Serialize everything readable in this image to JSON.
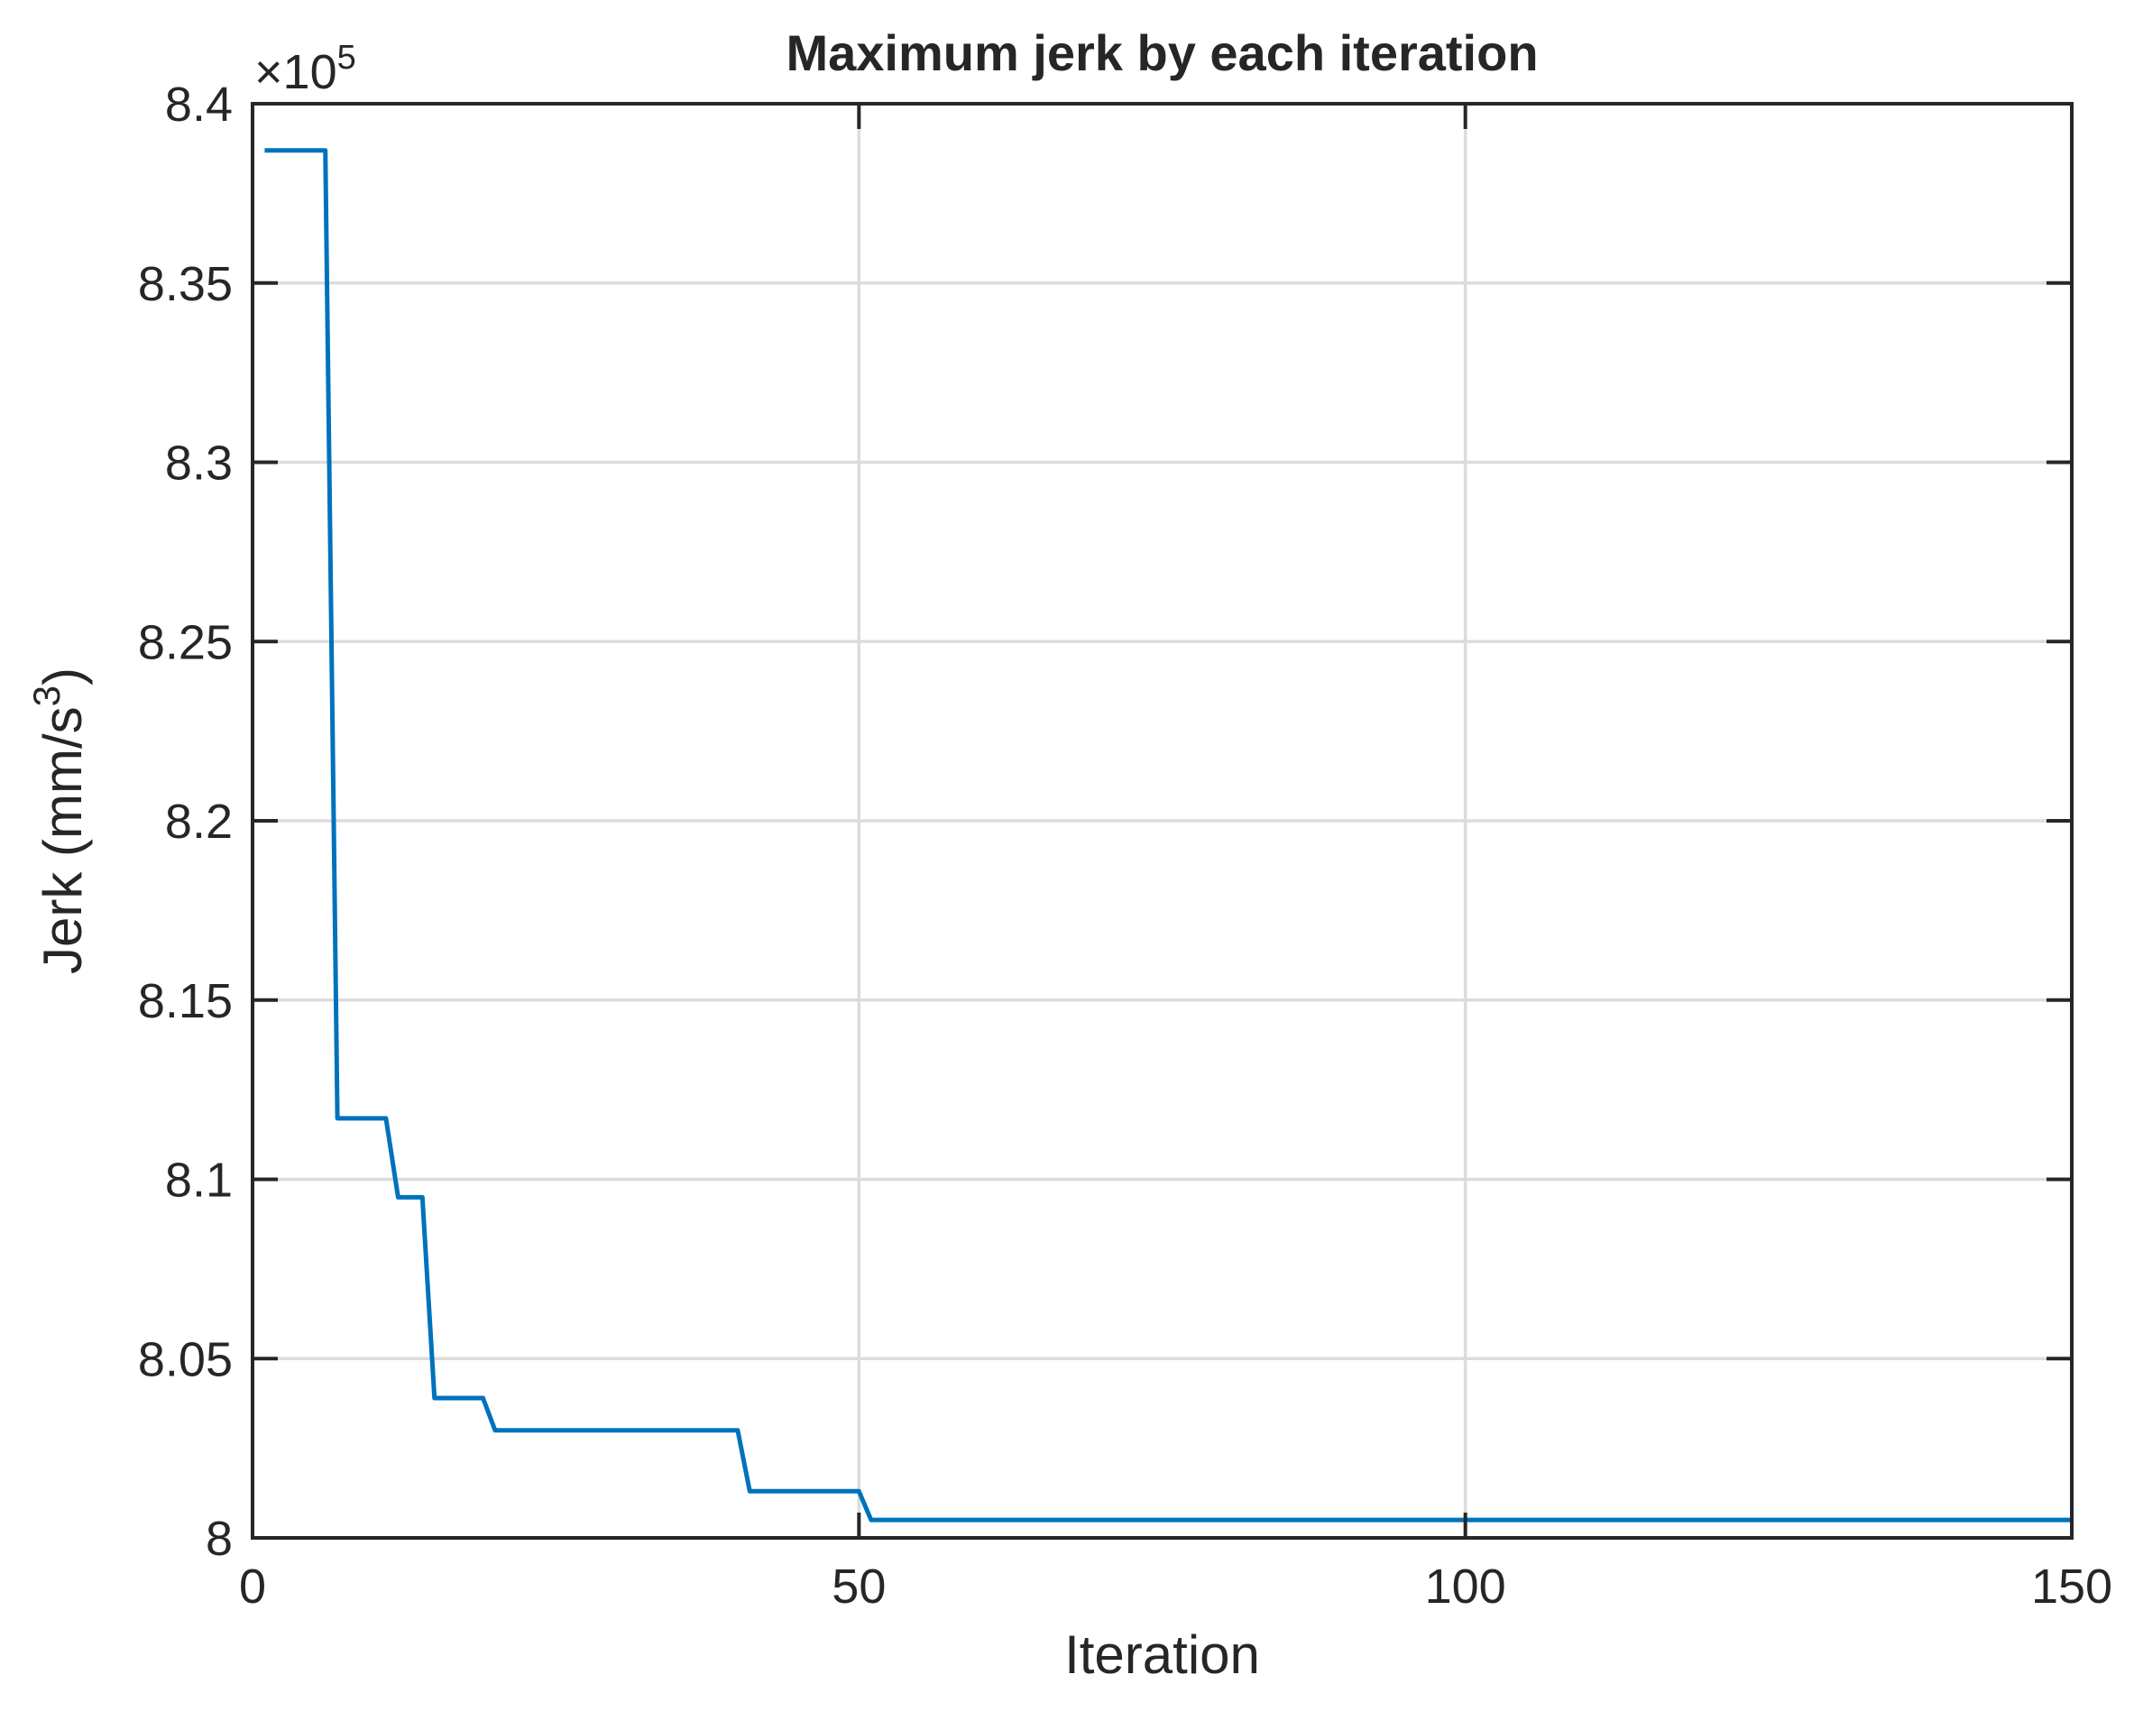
{
  "chart_data": {
    "type": "line",
    "title": "Maximum jerk by each iteration",
    "xlabel": "Iteration",
    "ylabel": {
      "main": "Jerk (mm/s",
      "superscript": "3",
      "close": ")"
    },
    "exponent_label": {
      "base": "×10",
      "power": "5"
    },
    "xlim": [
      0,
      150
    ],
    "ylim": [
      8.0,
      8.4
    ],
    "x_ticks": [
      0,
      50,
      100,
      150
    ],
    "x_tick_labels": [
      "0",
      "50",
      "100",
      "150"
    ],
    "y_ticks": [
      8.0,
      8.05,
      8.1,
      8.15,
      8.2,
      8.25,
      8.3,
      8.35,
      8.4
    ],
    "y_tick_labels": [
      "8",
      "8.05",
      "8.1",
      "8.15",
      "8.2",
      "8.25",
      "8.3",
      "8.35",
      "8.4"
    ],
    "grid": true,
    "line_color": "#0072BD",
    "series": [
      {
        "x": [
          1,
          2,
          3,
          4,
          5,
          6,
          7,
          8,
          9,
          10,
          11,
          12,
          13,
          14,
          15,
          16,
          17,
          18,
          19,
          20,
          21,
          22,
          23,
          24,
          25,
          26,
          27,
          28,
          29,
          30,
          31,
          32,
          33,
          34,
          35,
          36,
          37,
          38,
          39,
          40,
          41,
          42,
          43,
          44,
          45,
          46,
          47,
          48,
          49,
          50,
          51,
          150
        ],
        "y": [
          8.387,
          8.387,
          8.387,
          8.387,
          8.387,
          8.387,
          8.117,
          8.117,
          8.117,
          8.117,
          8.117,
          8.095,
          8.095,
          8.095,
          8.039,
          8.039,
          8.039,
          8.039,
          8.039,
          8.03,
          8.03,
          8.03,
          8.03,
          8.03,
          8.03,
          8.03,
          8.03,
          8.03,
          8.03,
          8.03,
          8.03,
          8.03,
          8.03,
          8.03,
          8.03,
          8.03,
          8.03,
          8.03,
          8.03,
          8.03,
          8.013,
          8.013,
          8.013,
          8.013,
          8.013,
          8.013,
          8.013,
          8.013,
          8.013,
          8.013,
          8.005,
          8.005
        ]
      }
    ]
  }
}
